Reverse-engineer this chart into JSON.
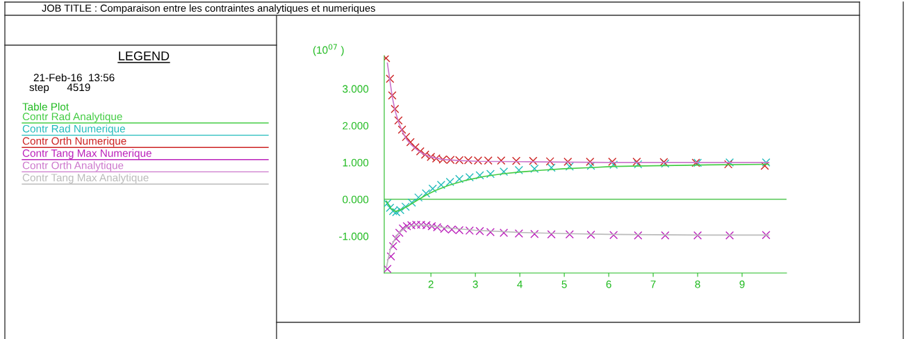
{
  "chart_data": {
    "type": "line",
    "title": "JOB TITLE : Comparaison entre les contraintes analytiques et numeriques",
    "ylabel": "(10$^{07}$ )",
    "legend_title": "Table Plot",
    "annotations": [
      "LEGEND",
      "21-Feb-16  13:56",
      "step      4519"
    ],
    "xlim": [
      0.95,
      10
    ],
    "xticks": [
      2,
      3,
      4,
      5,
      6,
      7,
      8,
      9
    ],
    "ylim": [
      -2.0,
      3.9
    ],
    "yticks": [
      {
        "value": -1,
        "label": "-1.000"
      },
      {
        "value": 0,
        "label": "0.000"
      },
      {
        "value": 1,
        "label": "1.000"
      },
      {
        "value": 2,
        "label": "2.000"
      },
      {
        "value": 3,
        "label": "3.000"
      }
    ],
    "grid": false,
    "legend": "left",
    "tick_labels": "xy",
    "ref_lines": [
      {
        "axis": "y",
        "value": 0,
        "color": "#33bb33"
      }
    ],
    "series": [
      {
        "name": "Contr Rad Analytique",
        "marker": "none",
        "color": "#44cc44",
        "x": [
          1.0,
          1.1,
          1.2,
          1.3,
          1.5,
          1.7,
          1.9,
          2.1,
          2.4,
          2.8,
          3.2,
          3.6,
          4.0,
          4.5,
          5.0,
          5.6,
          6.1,
          7.0,
          8.0,
          9.6
        ],
        "values": [
          -0.05,
          -0.25,
          -0.33,
          -0.3,
          -0.17,
          -0.02,
          0.12,
          0.24,
          0.38,
          0.52,
          0.62,
          0.69,
          0.74,
          0.79,
          0.83,
          0.86,
          0.89,
          0.91,
          0.93,
          0.95
        ]
      },
      {
        "name": "Contr Rad Numerique",
        "type": "scatter",
        "marker": "cross",
        "color": "#22bbbb",
        "x": [
          1.02,
          1.08,
          1.15,
          1.22,
          1.31,
          1.43,
          1.57,
          1.72,
          1.89,
          2.04,
          2.23,
          2.43,
          2.64,
          2.87,
          3.1,
          3.34,
          3.64,
          3.98,
          4.33,
          4.71,
          5.12,
          5.6,
          6.11,
          6.66,
          7.27,
          8.0,
          8.72,
          9.54
        ],
        "values": [
          -0.11,
          -0.23,
          -0.32,
          -0.35,
          -0.29,
          -0.2,
          -0.09,
          0.05,
          0.16,
          0.29,
          0.39,
          0.47,
          0.55,
          0.6,
          0.65,
          0.69,
          0.75,
          0.79,
          0.83,
          0.86,
          0.89,
          0.91,
          0.94,
          0.95,
          0.97,
          0.99,
          1.0,
          1.0
        ]
      },
      {
        "name": "Contr Orth Numerique",
        "type": "scatter",
        "marker": "cross",
        "color": "#cc2222",
        "x": [
          0.99,
          1.08,
          1.13,
          1.19,
          1.27,
          1.35,
          1.44,
          1.54,
          1.65,
          1.76,
          1.87,
          2.0,
          2.12,
          2.27,
          2.44,
          2.64,
          2.84,
          3.06,
          3.29,
          3.58,
          3.92,
          4.3,
          4.68,
          5.08,
          5.58,
          6.08,
          6.63,
          7.24,
          7.96,
          8.69,
          9.51
        ],
        "values": [
          3.83,
          3.27,
          2.82,
          2.45,
          2.14,
          1.89,
          1.69,
          1.55,
          1.41,
          1.3,
          1.21,
          1.15,
          1.11,
          1.08,
          1.07,
          1.06,
          1.06,
          1.05,
          1.05,
          1.05,
          1.04,
          1.04,
          1.03,
          1.02,
          1.02,
          1.02,
          1.02,
          1.01,
          0.99,
          0.95,
          0.91
        ]
      },
      {
        "name": "Contr Tang Max Numerique",
        "type": "scatter",
        "marker": "cross",
        "color": "#bb22bb",
        "x": [
          1.02,
          1.1,
          1.15,
          1.22,
          1.29,
          1.37,
          1.46,
          1.56,
          1.67,
          1.78,
          1.9,
          2.02,
          2.14,
          2.3,
          2.47,
          2.64,
          2.87,
          3.1,
          3.34,
          3.64,
          3.98,
          4.33,
          4.71,
          5.12,
          5.6,
          6.11,
          6.66,
          7.27,
          8.0,
          8.72,
          9.54
        ],
        "values": [
          -1.89,
          -1.55,
          -1.27,
          -1.07,
          -0.91,
          -0.79,
          -0.73,
          -0.7,
          -0.69,
          -0.69,
          -0.7,
          -0.73,
          -0.76,
          -0.8,
          -0.82,
          -0.84,
          -0.85,
          -0.86,
          -0.89,
          -0.91,
          -0.93,
          -0.94,
          -0.95,
          -0.95,
          -0.96,
          -0.97,
          -0.98,
          -0.98,
          -0.98,
          -0.98,
          -0.97
        ]
      },
      {
        "name": "Contr Orth Analytique",
        "marker": "none",
        "color": "#cc77cc",
        "x": [
          1.02,
          1.08,
          1.13,
          1.19,
          1.27,
          1.35,
          1.44,
          1.54,
          1.65,
          1.76,
          1.87,
          2.0,
          2.27,
          2.64,
          3.06,
          4.0,
          5.0,
          6.0,
          7.0,
          8.0,
          9.6
        ],
        "values": [
          3.7,
          3.2,
          2.78,
          2.42,
          2.1,
          1.86,
          1.65,
          1.5,
          1.38,
          1.28,
          1.21,
          1.15,
          1.08,
          1.05,
          1.03,
          1.02,
          1.01,
          1.0,
          1.0,
          1.0,
          1.0
        ]
      },
      {
        "name": "Contr Tang Max Analytique",
        "marker": "none",
        "color": "#bbbbbb",
        "x": [
          1.0,
          1.05,
          1.1,
          1.2,
          1.3,
          1.45,
          1.6,
          1.8,
          2.0,
          2.4,
          3.0,
          4.0,
          5.0,
          6.0,
          7.0,
          8.0,
          9.6
        ],
        "values": [
          -1.85,
          -1.55,
          -1.3,
          -1.05,
          -0.88,
          -0.76,
          -0.71,
          -0.7,
          -0.72,
          -0.78,
          -0.84,
          -0.9,
          -0.93,
          -0.95,
          -0.96,
          -0.97,
          -0.97
        ]
      }
    ]
  }
}
